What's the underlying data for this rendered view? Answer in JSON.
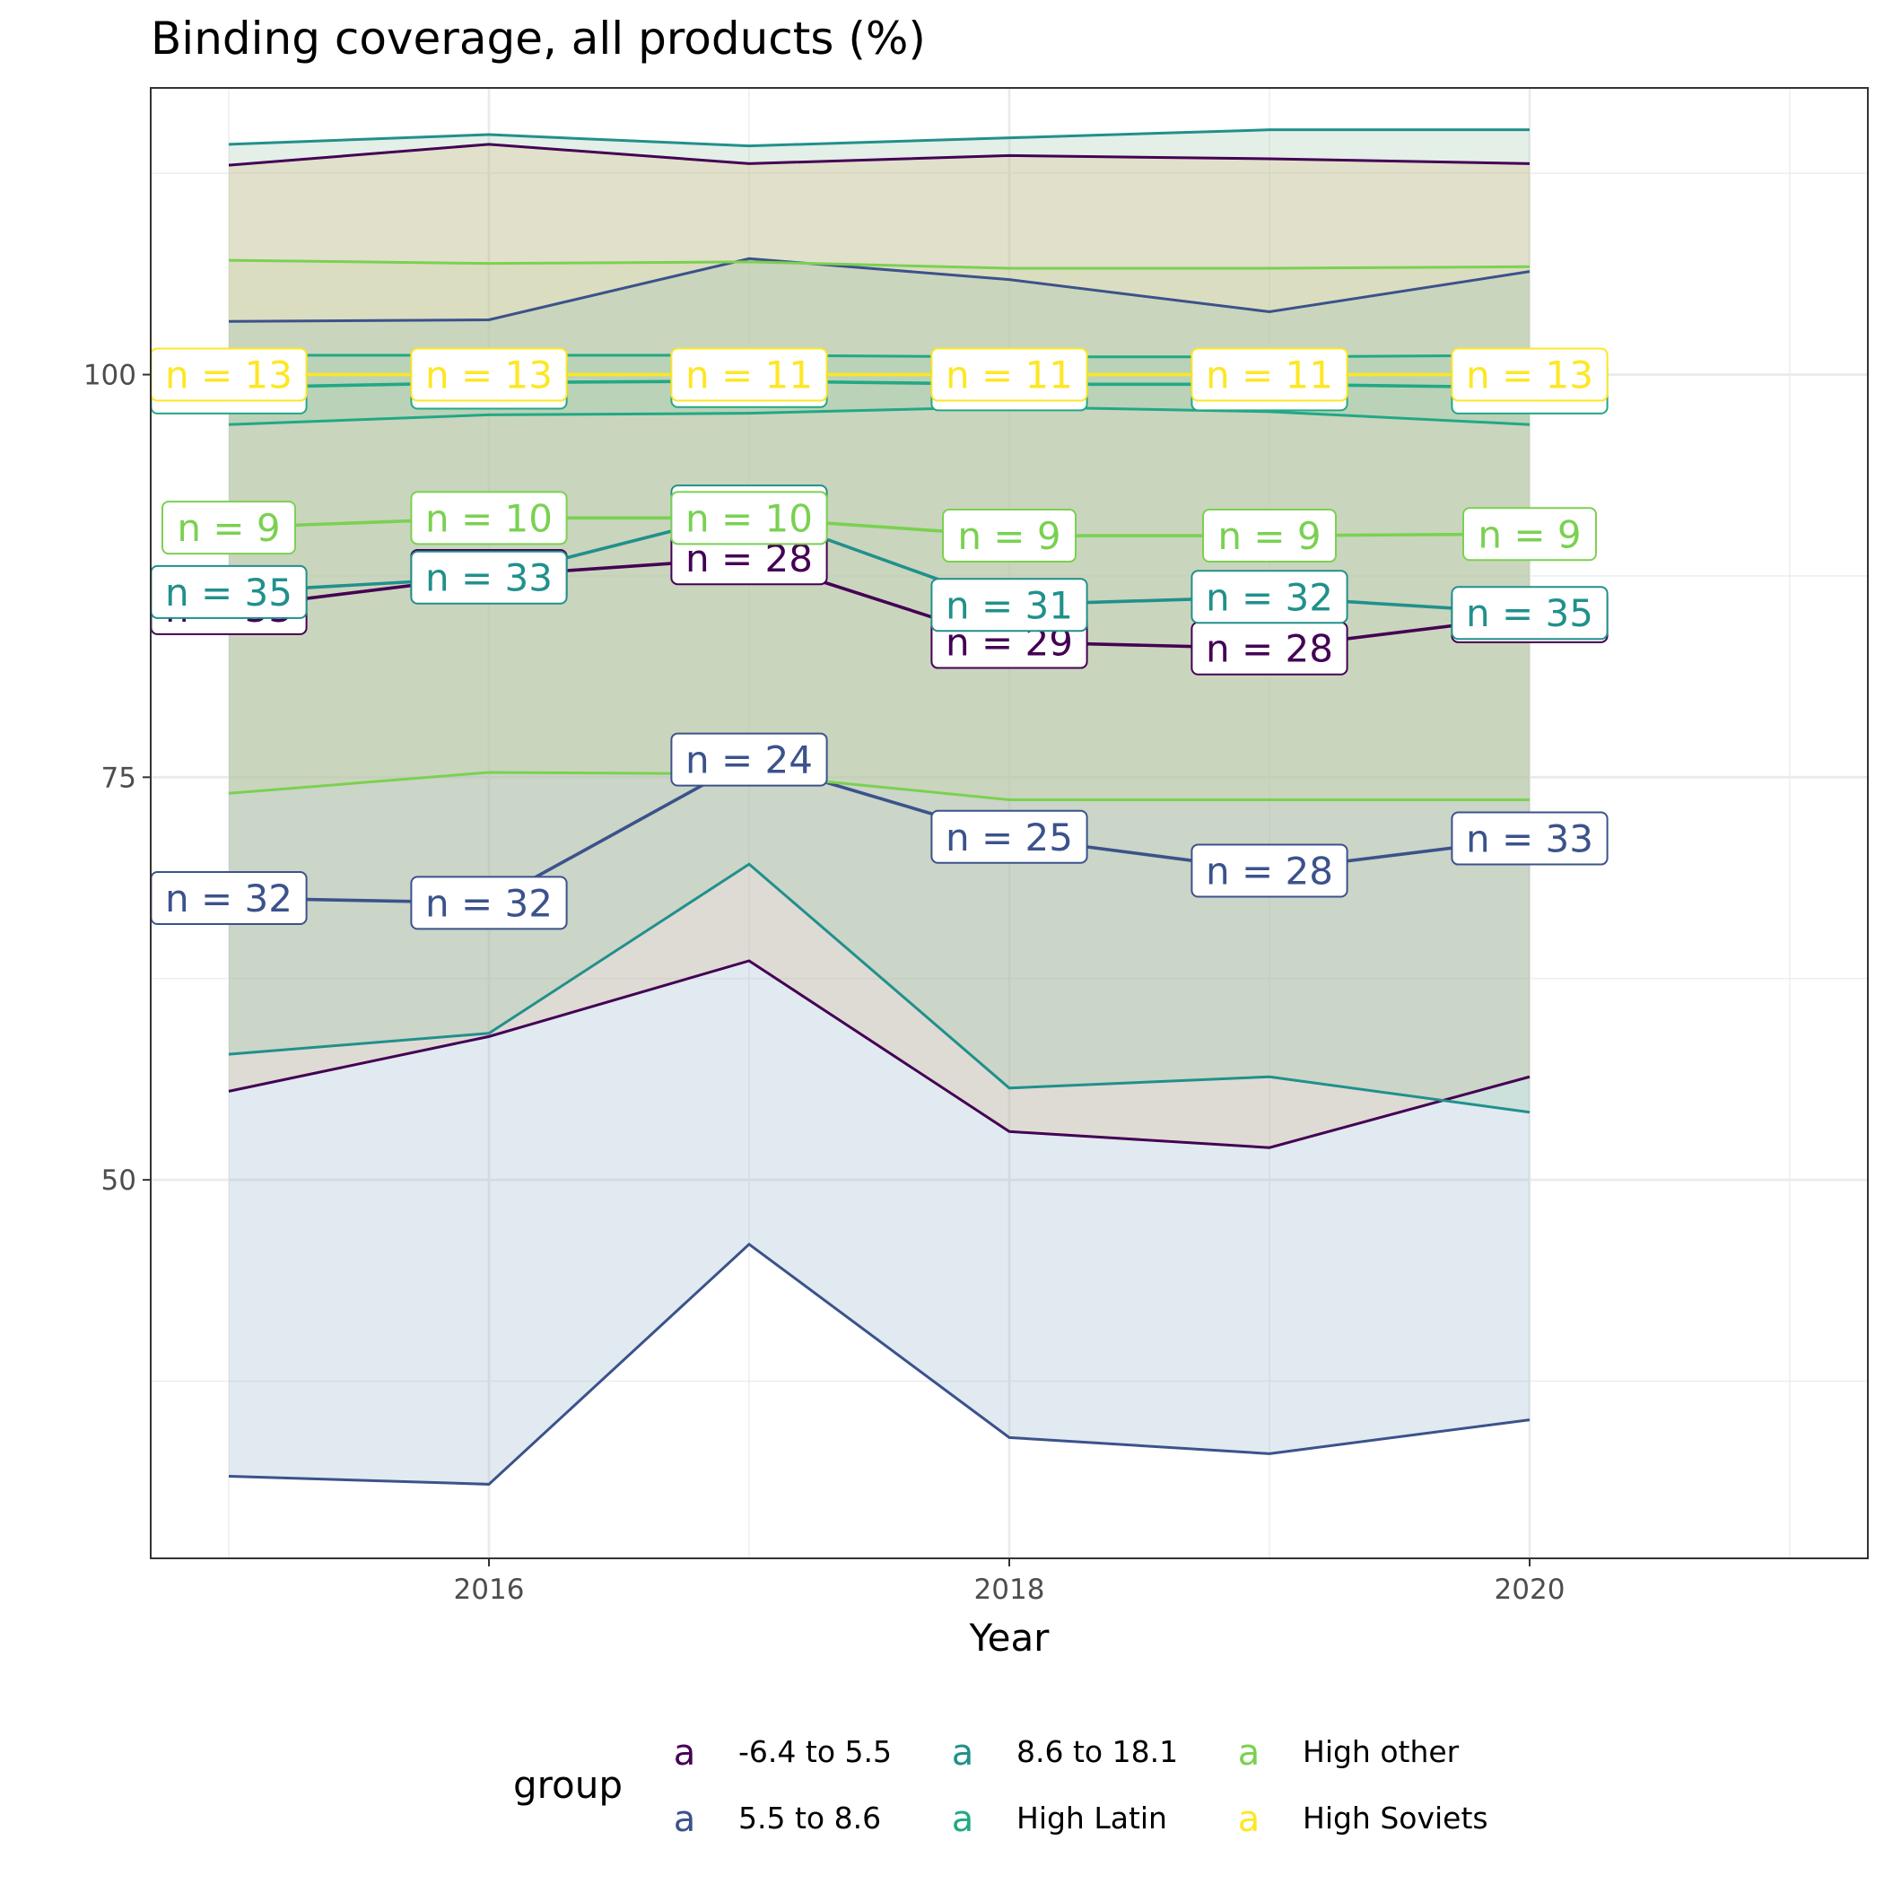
{
  "chart_data": {
    "type": "line",
    "title": "Binding coverage, all products (%)",
    "xlabel": "Year",
    "ylabel": "",
    "xlim": [
      2014.7,
      2021.3
    ],
    "ylim": [
      26.5,
      117.8
    ],
    "x_ticks": [
      2016,
      2018,
      2020
    ],
    "y_ticks": [
      50,
      75,
      100
    ],
    "grid": true,
    "legend_position": "bottom",
    "legend_title": "group",
    "legend_key_glyph": "a",
    "x": [
      2015,
      2016,
      2017,
      2018,
      2019,
      2020
    ],
    "series": [
      {
        "name": "-6.4 to 5.5",
        "color": "#440154",
        "mean": [
          85.5,
          87.5,
          88.6,
          83.4,
          83.0,
          85.0
        ],
        "lower": [
          55.5,
          58.9,
          63.6,
          53.0,
          52.0,
          56.4
        ],
        "upper": [
          113.0,
          114.3,
          113.1,
          113.6,
          113.4,
          113.1
        ],
        "n": [
          33,
          33,
          28,
          29,
          28,
          35
        ]
      },
      {
        "name": "5.5 to 8.6",
        "color": "#3b528b",
        "mean": [
          67.5,
          67.2,
          76.1,
          71.3,
          69.2,
          71.2
        ],
        "lower": [
          31.6,
          31.1,
          46.0,
          34.0,
          33.0,
          35.1
        ],
        "upper": [
          103.3,
          103.4,
          107.2,
          105.9,
          103.9,
          106.4
        ],
        "n": [
          32,
          32,
          24,
          25,
          28,
          33
        ]
      },
      {
        "name": "8.6 to 18.1",
        "color": "#21908c",
        "mean": [
          86.5,
          87.4,
          91.5,
          85.7,
          86.2,
          85.2
        ],
        "lower": [
          57.8,
          59.1,
          69.6,
          55.7,
          56.4,
          54.2
        ],
        "upper": [
          114.3,
          114.9,
          114.2,
          114.7,
          115.2,
          115.2
        ],
        "n": [
          35,
          33,
          10,
          31,
          32,
          35
        ]
      },
      {
        "name": "High Latin",
        "color": "#22a884",
        "mean": [
          99.2,
          99.5,
          99.6,
          99.4,
          99.4,
          99.2
        ],
        "lower": [
          96.9,
          97.5,
          97.6,
          98.0,
          97.7,
          96.9
        ],
        "upper": [
          101.2,
          101.2,
          101.2,
          101.1,
          101.1,
          101.2
        ],
        "n": [
          13,
          13,
          11,
          11,
          11,
          13
        ]
      },
      {
        "name": "High other",
        "color": "#7ad151",
        "mean": [
          90.5,
          91.1,
          91.1,
          90.0,
          90.0,
          90.1
        ],
        "lower": [
          74.0,
          75.3,
          75.2,
          73.6,
          73.6,
          73.6
        ],
        "upper": [
          107.1,
          106.9,
          107.0,
          106.6,
          106.6,
          106.7
        ],
        "n": [
          9,
          10,
          10,
          9,
          9,
          9
        ]
      },
      {
        "name": "High Soviets",
        "color": "#fde725",
        "mean": [
          100.0,
          100.0,
          100.0,
          100.0,
          100.0,
          100.0
        ],
        "lower": [
          100.0,
          100.0,
          100.0,
          100.0,
          100.0,
          100.0
        ],
        "upper": [
          100.0,
          100.0,
          100.0,
          100.0,
          100.0,
          100.0
        ],
        "n": [
          13,
          13,
          11,
          11,
          11,
          13
        ]
      }
    ],
    "n_label_prefix": "n = "
  }
}
